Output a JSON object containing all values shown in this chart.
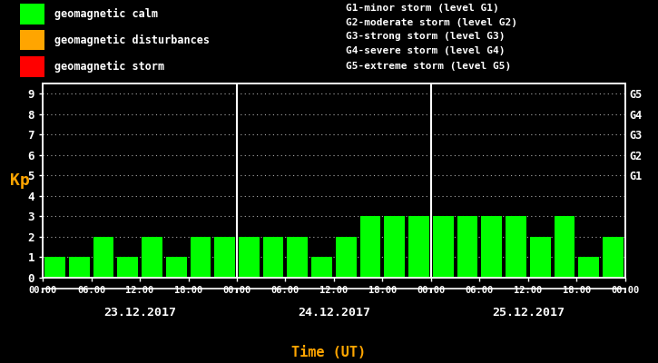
{
  "background_color": "#000000",
  "bar_color_calm": "#00ff00",
  "bar_color_disturbance": "#ffa500",
  "bar_color_storm": "#ff0000",
  "text_color": "#ffffff",
  "kp_label_color": "#ffa500",
  "xlabel_color": "#ffa500",
  "ylabel": "Kp",
  "xlabel": "Time (UT)",
  "ylim": [
    0,
    9.5
  ],
  "yticks": [
    0,
    1,
    2,
    3,
    4,
    5,
    6,
    7,
    8,
    9
  ],
  "days": [
    "23.12.2017",
    "24.12.2017",
    "25.12.2017"
  ],
  "kp_values": [
    [
      1,
      1,
      2,
      1,
      2,
      1,
      2,
      2
    ],
    [
      2,
      2,
      2,
      1,
      2,
      3,
      3,
      3
    ],
    [
      3,
      3,
      3,
      3,
      2,
      3,
      1,
      2
    ]
  ],
  "right_labels": [
    [
      5.0,
      "G1"
    ],
    [
      6.0,
      "G2"
    ],
    [
      7.0,
      "G3"
    ],
    [
      8.0,
      "G4"
    ],
    [
      9.0,
      "G5"
    ]
  ],
  "legend_items": [
    {
      "label": "geomagnetic calm",
      "color": "#00ff00"
    },
    {
      "label": "geomagnetic disturbances",
      "color": "#ffa500"
    },
    {
      "label": "geomagnetic storm",
      "color": "#ff0000"
    }
  ],
  "legend2_items": [
    "G1-minor storm (level G1)",
    "G2-moderate storm (level G2)",
    "G3-strong storm (level G3)",
    "G4-severe storm (level G4)",
    "G5-extreme storm (level G5)"
  ],
  "separator_color": "#ffffff",
  "bar_width": 0.85,
  "fig_width": 7.25,
  "fig_height": 4.0,
  "dpi": 100
}
